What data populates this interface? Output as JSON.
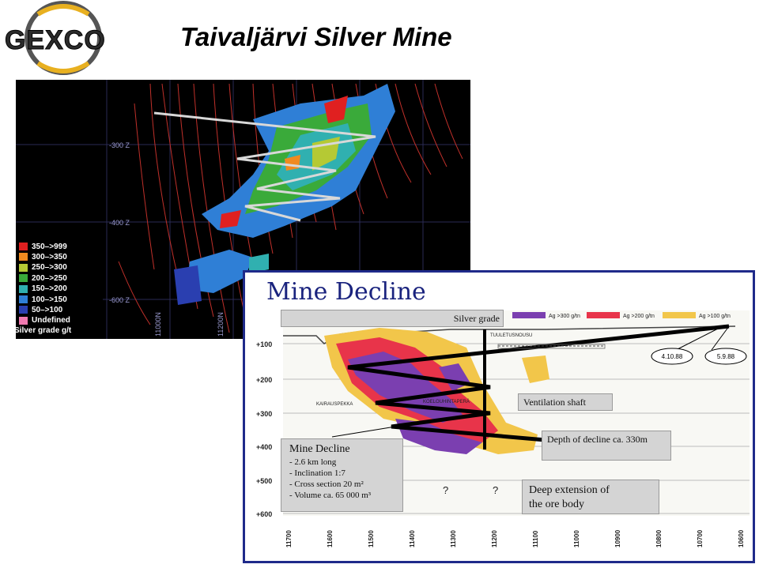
{
  "logo": {
    "text": "GEXCO",
    "icon": "gexco-logo-icon"
  },
  "title": "Taivaljärvi Silver Mine",
  "plan_panel": {
    "legend": [
      {
        "label": "350–>999",
        "color": "#e02020"
      },
      {
        "label": "300–>350",
        "color": "#f08a20"
      },
      {
        "label": "250–>300",
        "color": "#b5c934"
      },
      {
        "label": "200–>250",
        "color": "#3aaa3a"
      },
      {
        "label": "150–>200",
        "color": "#30b0b0"
      },
      {
        "label": "100–>150",
        "color": "#2f7fd6"
      },
      {
        "label": "50–>100",
        "color": "#2a3fb0"
      },
      {
        "label": "Undefined",
        "color": "#f07ab0"
      }
    ],
    "legend_caption": "Silver grade g/t",
    "depth_labels": [
      "-300 Z",
      "-400 Z",
      "-600 Z"
    ],
    "coord_labels": [
      "11000N",
      "11200N"
    ]
  },
  "section_panel": {
    "title": "Mine Decline",
    "silver_grade": "Silver grade",
    "grade_legend": [
      "Ag >300 g/tn",
      "Ag >200 g/tn",
      "Ag >100 g/tn"
    ],
    "grade_colors": [
      "#7b3fb0",
      "#e8344a",
      "#f2c64a"
    ],
    "dates": [
      "4.10.88",
      "5.9.88"
    ],
    "place_labels": [
      "TUULETUSNOUSU",
      "KAIRAUSPEKKA",
      "KOELOUHINTAPERÄ"
    ],
    "depth_ticks": [
      "+100",
      "+200",
      "+300",
      "+400",
      "+500",
      "+600"
    ],
    "x_ticks": [
      "11700",
      "11600",
      "11500",
      "11400",
      "11300",
      "11200",
      "11100",
      "11000",
      "10900",
      "10800",
      "10700",
      "10600"
    ],
    "ventilation_shaft": "Ventilation shaft",
    "depth_note": "Depth of decline ca. 330m",
    "decline_box": {
      "heading": "Mine Decline",
      "lines": [
        "- 2.6 km long",
        "- Inclination 1:7",
        "- Cross section 20 m²",
        "- Volume ca. 65 000 m³"
      ]
    },
    "extension_note": [
      "Deep extension of",
      "the ore body"
    ],
    "question_marks": [
      "?",
      "?"
    ]
  }
}
